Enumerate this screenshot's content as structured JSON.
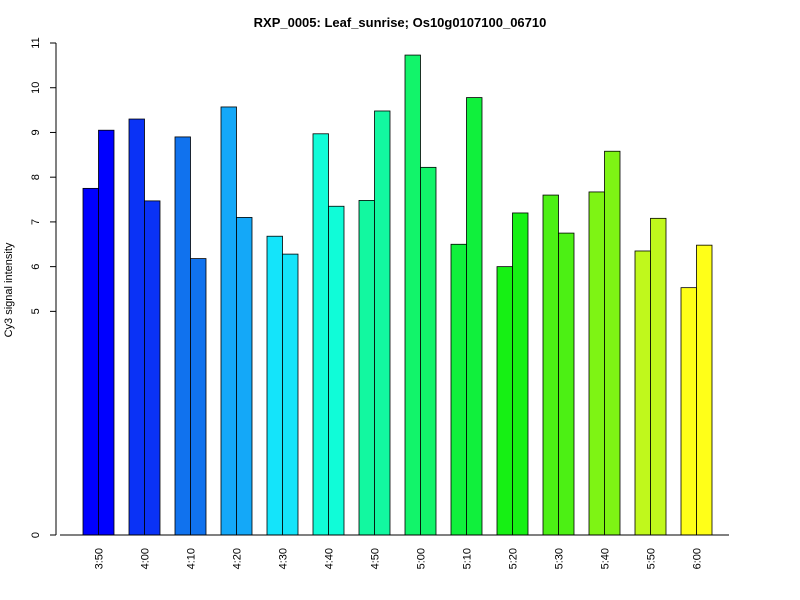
{
  "chart_data": {
    "type": "bar",
    "title": "RXP_0005: Leaf_sunrise; Os10g0107100_06710",
    "xlabel": "",
    "ylabel": "Cy3 signal intensity",
    "categories": [
      "3:50",
      "4:00",
      "4:10",
      "4:20",
      "4:30",
      "4:40",
      "4:50",
      "5:00",
      "5:10",
      "5:20",
      "5:30",
      "5:40",
      "5:50",
      "6:00"
    ],
    "series": [
      {
        "values": [
          7.75,
          9.3,
          8.9,
          9.57,
          6.68,
          8.97,
          7.48,
          10.73,
          6.5,
          6.0,
          7.6,
          7.67,
          6.35,
          5.53
        ]
      },
      {
        "values": [
          9.05,
          7.47,
          6.18,
          7.1,
          6.28,
          7.35,
          9.48,
          8.22,
          9.78,
          7.2,
          6.75,
          8.58,
          7.08,
          6.48
        ]
      }
    ],
    "category_colors": [
      "#0000FF",
      "#0A32F6",
      "#1072EE",
      "#14A8F8",
      "#14E4FA",
      "#10FCD8",
      "#12F8A0",
      "#12F46A",
      "#10F03C",
      "#16F014",
      "#4CF014",
      "#7EF414",
      "#C0F81C",
      "#FFFF18"
    ],
    "y_axis": {
      "ticks": [
        0,
        5,
        6,
        7,
        8,
        9,
        10,
        11
      ],
      "tick_labels": [
        "0",
        "5",
        "6",
        "7",
        "8",
        "9",
        "10",
        "11"
      ],
      "ylim": [
        0,
        11
      ]
    },
    "grid": false,
    "legend": "none"
  }
}
